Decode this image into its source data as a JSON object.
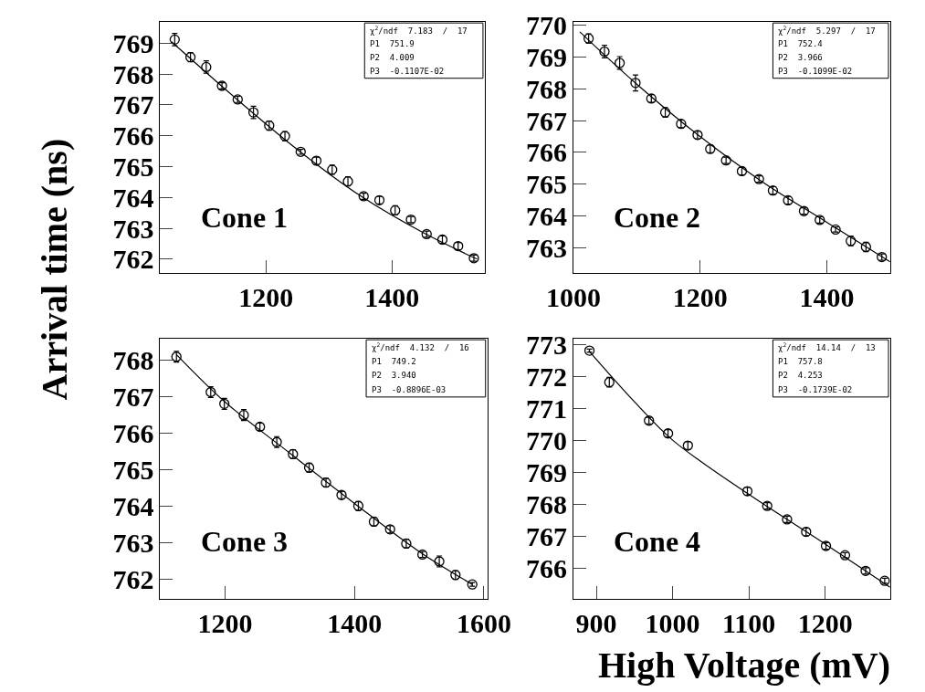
{
  "chart_data": [
    {
      "type": "scatter",
      "ylabel": "Arrival time (ns)",
      "x": [
        1055,
        1080,
        1105,
        1130,
        1155,
        1180,
        1205,
        1230,
        1255,
        1280,
        1305,
        1330,
        1355,
        1380,
        1405,
        1430,
        1455,
        1480,
        1505,
        1530
      ],
      "xlim": [
        1032,
        1547
      ],
      "xticks": [
        1200,
        1400
      ],
      "ylim": [
        761.55,
        769.7
      ],
      "yticks": [
        762,
        763,
        764,
        765,
        766,
        767,
        768,
        769
      ],
      "series": [
        {
          "marker": "circle",
          "color": "#000000",
          "values": [
            769.12,
            768.55,
            768.23,
            767.62,
            767.18,
            766.76,
            766.33,
            765.99,
            765.48,
            765.19,
            764.9,
            764.52,
            764.04,
            763.91,
            763.58,
            763.28,
            762.81,
            762.63,
            762.42,
            762.03
          ],
          "errors": [
            0.2,
            0.15,
            0.2,
            0.1,
            0.1,
            0.2,
            0.15,
            0.15,
            0.08,
            0.12,
            0.15,
            0.15,
            0.1,
            0.12,
            0.15,
            0.1,
            0.1,
            0.12,
            0.12,
            0.1
          ]
        },
        {
          "type": "line",
          "marker": "none",
          "color": "#000000",
          "x": [
            1050,
            1150,
            1250,
            1350,
            1450,
            1535
          ],
          "values": [
            769.05,
            767.25,
            765.55,
            764.05,
            762.85,
            762.0
          ]
        }
      ],
      "annotations": [
        "Cone 1",
        "χ$^{2}$/ndf  7.183  /  17",
        "P1  751.9",
        "P2  4.009",
        "P3  -0.1107E-02"
      ]
    },
    {
      "type": "scatter",
      "x": [
        1024,
        1049,
        1073,
        1098,
        1123,
        1145,
        1170,
        1196,
        1216,
        1241,
        1266,
        1293,
        1315,
        1339,
        1364,
        1389,
        1414,
        1438,
        1462,
        1487
      ],
      "xlim": [
        1000,
        1500
      ],
      "xticks": [
        1000,
        1200,
        1400
      ],
      "ylim": [
        762.2,
        770.12
      ],
      "yticks": [
        763,
        764,
        765,
        766,
        767,
        768,
        769,
        770
      ],
      "series": [
        {
          "marker": "circle",
          "color": "#000000",
          "values": [
            769.59,
            769.18,
            768.82,
            768.19,
            767.7,
            767.26,
            766.9,
            766.55,
            766.11,
            765.75,
            765.41,
            765.16,
            764.8,
            764.49,
            764.15,
            763.87,
            763.57,
            763.21,
            763.02,
            762.7
          ],
          "errors": [
            0.15,
            0.2,
            0.2,
            0.25,
            0.12,
            0.15,
            0.12,
            0.12,
            0.12,
            0.1,
            0.12,
            0.1,
            0.12,
            0.12,
            0.1,
            0.1,
            0.08,
            0.15,
            0.15,
            0.1
          ]
        },
        {
          "type": "line",
          "marker": "none",
          "color": "#000000",
          "x": [
            1010,
            1100,
            1200,
            1300,
            1400,
            1500
          ],
          "values": [
            769.8,
            768.15,
            766.5,
            765.05,
            763.8,
            762.55
          ]
        }
      ],
      "annotations": [
        "Cone 2",
        "χ$^{2}$/ndf  5.297  /  17",
        "P1  752.4",
        "P2  3.966",
        "P3  -0.1099E-02"
      ]
    },
    {
      "type": "scatter",
      "x": [
        1125,
        1178,
        1199,
        1229,
        1254,
        1280,
        1305,
        1330,
        1356,
        1380,
        1406,
        1430,
        1455,
        1480,
        1505,
        1531,
        1556,
        1582
      ],
      "xlim": [
        1100,
        1605
      ],
      "xticks": [
        1200,
        1400,
        1600
      ],
      "ylim": [
        761.46,
        768.59
      ],
      "yticks": [
        762,
        763,
        764,
        765,
        766,
        767,
        768
      ],
      "series": [
        {
          "marker": "circle",
          "color": "#000000",
          "values": [
            768.09,
            767.12,
            766.8,
            766.49,
            766.17,
            765.75,
            765.42,
            765.05,
            764.64,
            764.3,
            764.0,
            763.57,
            763.36,
            762.97,
            762.67,
            762.48,
            762.11,
            761.85
          ],
          "errors": [
            0.15,
            0.15,
            0.15,
            0.15,
            0.1,
            0.15,
            0.12,
            0.12,
            0.12,
            0.1,
            0.12,
            0.12,
            0.1,
            0.12,
            0.08,
            0.15,
            0.12,
            0.05
          ]
        },
        {
          "type": "line",
          "marker": "none",
          "color": "#000000",
          "x": [
            1125,
            1200,
            1300,
            1400,
            1500,
            1582
          ],
          "values": [
            768.15,
            766.85,
            765.45,
            764.07,
            762.75,
            761.85
          ]
        }
      ],
      "annotations": [
        "Cone 3",
        "χ$^{2}$/ndf  4.132  /  16",
        "P1  749.2",
        "P2  3.940",
        "P3  -0.8896E-03"
      ]
    },
    {
      "type": "scatter",
      "xlabel": "High Voltage (mV)",
      "x": [
        891,
        917,
        969,
        994,
        1020,
        1098,
        1124,
        1150,
        1175,
        1201,
        1226,
        1253,
        1278
      ],
      "xlim": [
        870,
        1285
      ],
      "xticks": [
        900,
        1000,
        1100,
        1200
      ],
      "ylim": [
        765.04,
        773.18
      ],
      "yticks": [
        766,
        767,
        768,
        769,
        770,
        771,
        772,
        773
      ],
      "series": [
        {
          "marker": "circle",
          "color": "#000000",
          "values": [
            772.8,
            771.81,
            770.61,
            770.21,
            769.83,
            768.4,
            767.94,
            767.52,
            767.13,
            766.69,
            766.4,
            765.91,
            765.6
          ],
          "errors": [
            0.05,
            0.15,
            0.1,
            0.12,
            0.12,
            0.12,
            0.1,
            0.1,
            0.12,
            0.1,
            0.08,
            0.1,
            0.08
          ]
        },
        {
          "type": "line",
          "marker": "none",
          "color": "#000000",
          "x": [
            890,
            950,
            1000,
            1100,
            1200,
            1285
          ],
          "values": [
            772.8,
            771.2,
            770.0,
            768.3,
            766.75,
            765.4
          ]
        }
      ],
      "annotations": [
        "Cone 4",
        "χ$^{2}$/ndf  14.14  /  13",
        "P1  757.8",
        "P2  4.253",
        "P3  -0.1739E-02"
      ]
    }
  ]
}
